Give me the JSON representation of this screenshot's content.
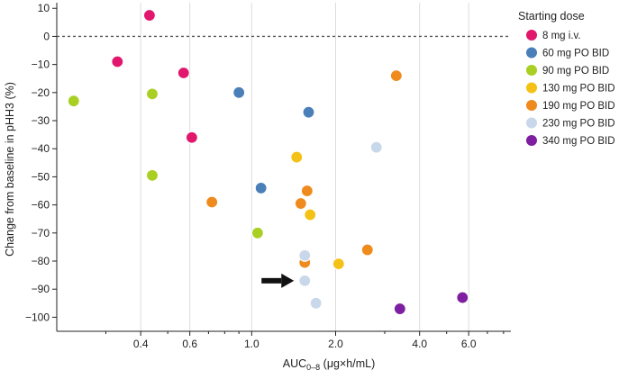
{
  "chart_data": {
    "type": "scatter",
    "xscale": "log",
    "xlim": [
      0.2,
      8.5
    ],
    "ylim": [
      -105,
      12
    ],
    "xticks": [
      0.4,
      0.6,
      1.0,
      2.0,
      4.0,
      6.0
    ],
    "xtick_labels": [
      "0.4",
      "0.6",
      "1.0",
      "2.0",
      "4.0",
      "6.0"
    ],
    "yticks": [
      10,
      0,
      -10,
      -20,
      -30,
      -40,
      -50,
      -60,
      -70,
      -80,
      -90,
      -100
    ],
    "ytick_labels": [
      "10",
      "0",
      "−10",
      "−20",
      "−30",
      "−40",
      "−50",
      "−60",
      "−70",
      "−80",
      "−90",
      "−100"
    ],
    "ylabel": "Change from baseline in pHH3 (%)",
    "xlabel_main": "AUC",
    "xlabel_sub": "0–8",
    "xlabel_unit": " (μg×h/mL)",
    "reference_line": 0,
    "legend_title": "Starting dose",
    "series": [
      {
        "name": "8 mg i.v.",
        "color": "#e0176d",
        "points": [
          [
            0.43,
            7.5
          ],
          [
            0.33,
            -9
          ],
          [
            0.57,
            -13
          ],
          [
            0.61,
            -36
          ]
        ]
      },
      {
        "name": "60 mg PO BID",
        "color": "#4a7fb8",
        "points": [
          [
            0.9,
            -20
          ],
          [
            1.6,
            -27
          ],
          [
            1.08,
            -54
          ]
        ]
      },
      {
        "name": "90 mg PO BID",
        "color": "#a8cf22",
        "points": [
          [
            0.23,
            -23
          ],
          [
            0.44,
            -20.5
          ],
          [
            0.44,
            -49.5
          ],
          [
            1.05,
            -70
          ]
        ]
      },
      {
        "name": "130 mg PO BID",
        "color": "#f4c116",
        "points": [
          [
            1.45,
            -43
          ],
          [
            1.62,
            -63.5
          ],
          [
            2.05,
            -81
          ]
        ]
      },
      {
        "name": "190 mg PO BID",
        "color": "#ef8a1d",
        "points": [
          [
            3.3,
            -14
          ],
          [
            0.72,
            -59
          ],
          [
            1.58,
            -55
          ],
          [
            1.5,
            -59.5
          ],
          [
            2.6,
            -76
          ],
          [
            1.55,
            -80.5
          ]
        ]
      },
      {
        "name": "230 mg PO BID",
        "color": "#c8d8ea",
        "points": [
          [
            2.8,
            -39.5
          ],
          [
            1.55,
            -78
          ],
          [
            1.55,
            -87
          ],
          [
            1.7,
            -95
          ]
        ]
      },
      {
        "name": "340 mg PO BID",
        "color": "#7d1fa0",
        "points": [
          [
            5.7,
            -93
          ],
          [
            3.4,
            -97
          ]
        ]
      }
    ],
    "annotation": {
      "type": "arrow",
      "points_to": [
        1.55,
        -87
      ],
      "color": "#111111"
    }
  }
}
